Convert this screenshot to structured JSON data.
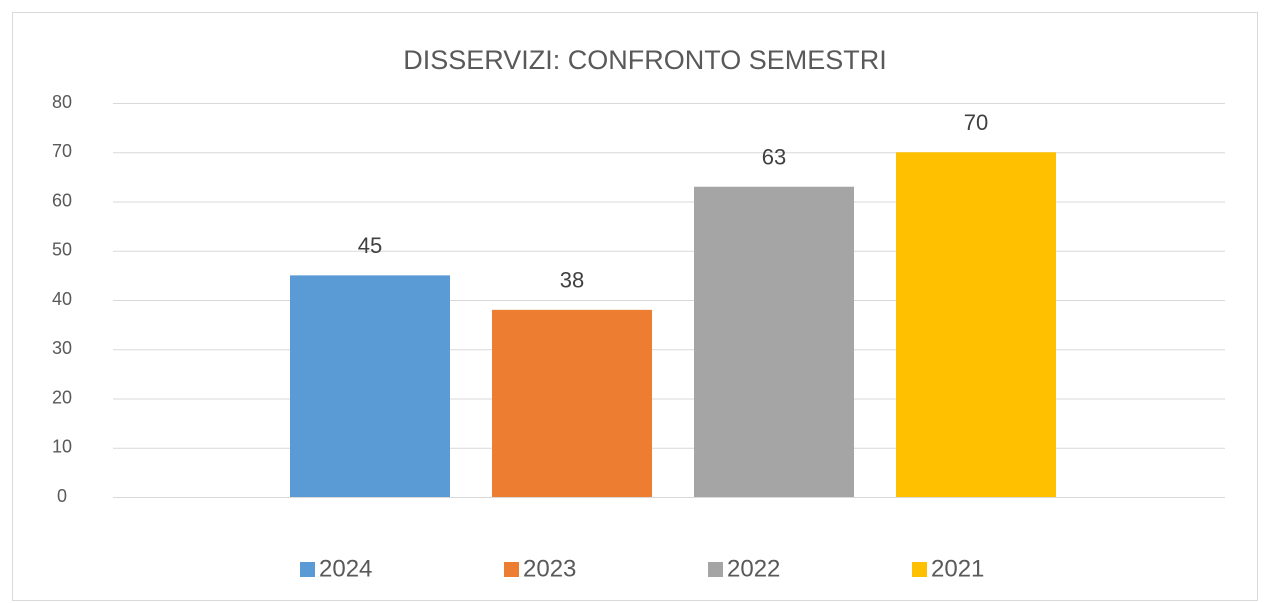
{
  "chart_data": {
    "type": "bar",
    "title": "DISSERVIZI: CONFRONTO SEMESTRI",
    "categories": [
      null
    ],
    "series": [
      {
        "name": "2024",
        "color": "#5b9bd5",
        "values": [
          45
        ]
      },
      {
        "name": "2023",
        "color": "#ed7d31",
        "values": [
          38
        ]
      },
      {
        "name": "2022",
        "color": "#a5a5a5",
        "values": [
          63
        ]
      },
      {
        "name": "2021",
        "color": "#ffc000",
        "values": [
          70
        ]
      }
    ],
    "ylim": [
      0,
      80
    ],
    "yticks": [
      0,
      10,
      20,
      30,
      40,
      50,
      60,
      70,
      80
    ],
    "grid": true,
    "legend": "bottom"
  }
}
